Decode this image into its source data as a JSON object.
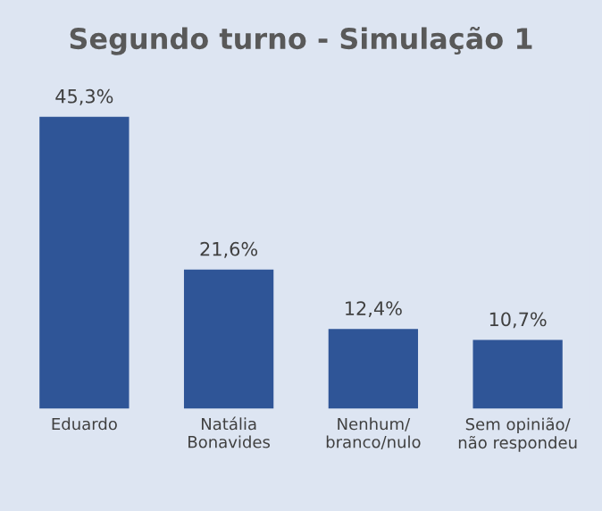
{
  "chart_data": {
    "type": "bar",
    "title": "Segundo turno - Simulação 1",
    "categories": [
      "Eduardo",
      "Natália\nBonavides",
      "Nenhum/\nbranco/nulo",
      "Sem opinião/\nnão respondeu"
    ],
    "values": [
      45.3,
      21.6,
      12.4,
      10.7
    ],
    "value_labels": [
      "45,3%",
      "21,6%",
      "12,4%",
      "10,7%"
    ],
    "color": "#2f5597",
    "grid": false,
    "tick_labels": "x"
  }
}
